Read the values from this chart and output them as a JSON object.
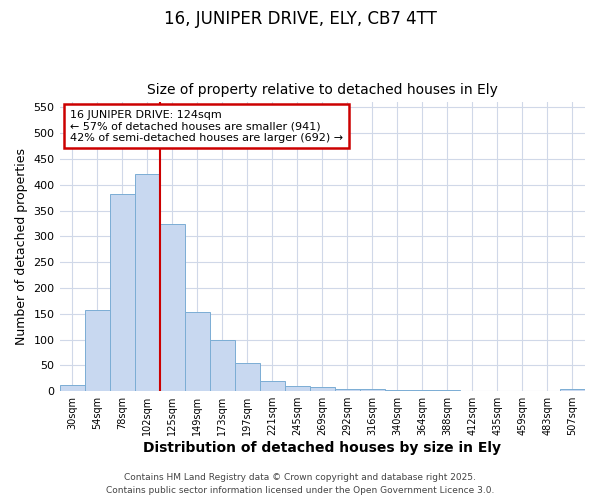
{
  "title_line1": "16, JUNIPER DRIVE, ELY, CB7 4TT",
  "title_line2": "Size of property relative to detached houses in Ely",
  "xlabel": "Distribution of detached houses by size in Ely",
  "ylabel": "Number of detached properties",
  "bar_labels": [
    "30sqm",
    "54sqm",
    "78sqm",
    "102sqm",
    "125sqm",
    "149sqm",
    "173sqm",
    "197sqm",
    "221sqm",
    "245sqm",
    "269sqm",
    "292sqm",
    "316sqm",
    "340sqm",
    "364sqm",
    "388sqm",
    "412sqm",
    "435sqm",
    "459sqm",
    "483sqm",
    "507sqm"
  ],
  "bar_values": [
    13,
    157,
    383,
    422,
    325,
    153,
    100,
    54,
    20,
    10,
    8,
    5,
    4,
    3,
    2,
    2,
    1,
    1,
    1,
    1,
    5
  ],
  "bar_color": "#c8d8f0",
  "bar_edge_color": "#7badd4",
  "annotation_line1": "16 JUNIPER DRIVE: 124sqm",
  "annotation_line2": "← 57% of detached houses are smaller (941)",
  "annotation_line3": "42% of semi-detached houses are larger (692) →",
  "annotation_box_color": "#ffffff",
  "annotation_box_edge": "#cc0000",
  "vline_color": "#cc0000",
  "vline_x_index": 3.5,
  "ylim": [
    0,
    560
  ],
  "yticks": [
    0,
    50,
    100,
    150,
    200,
    250,
    300,
    350,
    400,
    450,
    500,
    550
  ],
  "footer_line1": "Contains HM Land Registry data © Crown copyright and database right 2025.",
  "footer_line2": "Contains public sector information licensed under the Open Government Licence 3.0.",
  "bg_color": "#ffffff",
  "grid_color": "#d0d8e8",
  "title_fontsize": 12,
  "subtitle_fontsize": 10,
  "ylabel_fontsize": 9,
  "xlabel_fontsize": 10
}
